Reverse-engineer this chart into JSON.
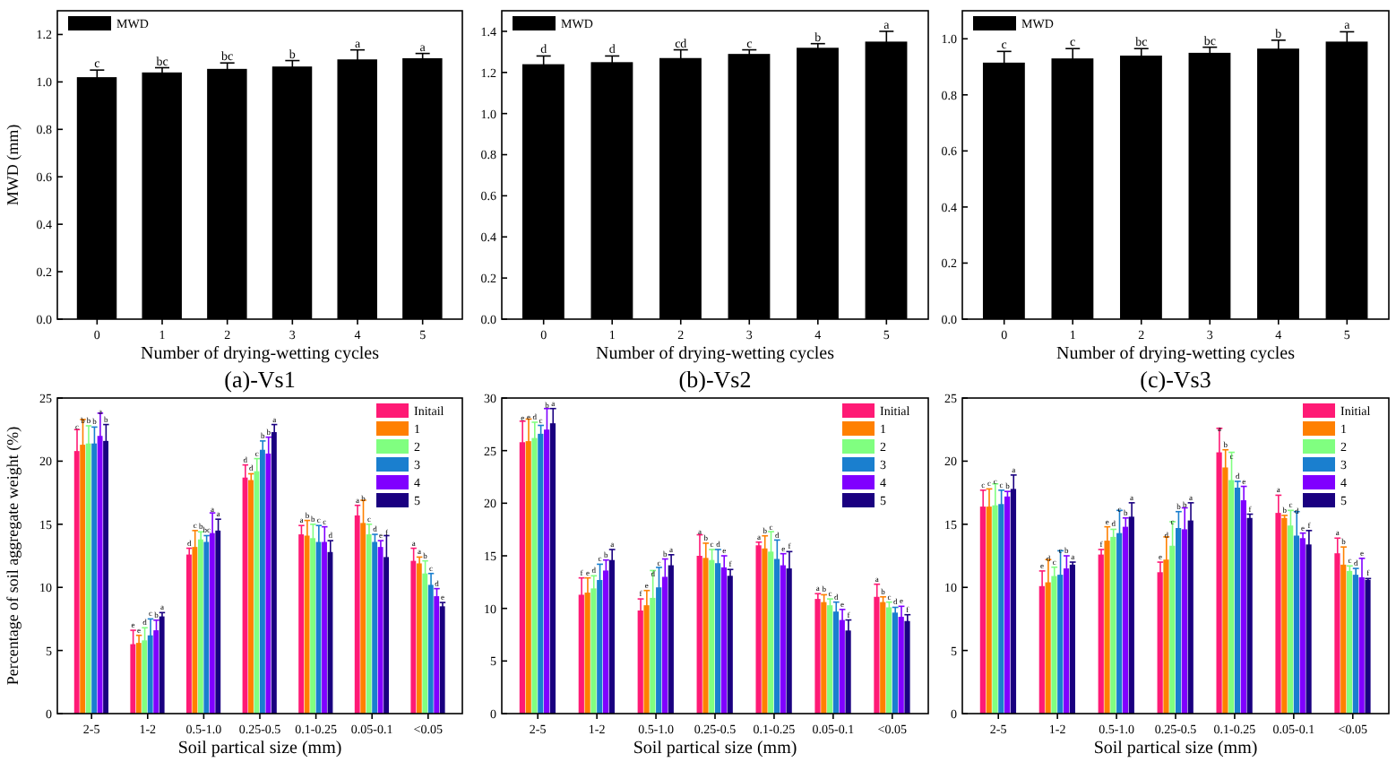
{
  "chart_data": [
    {
      "type": "bar",
      "title": "(a)-Vs1",
      "xlabel": "Number of drying-wetting cycles",
      "ylabel": "MWD (mm)",
      "categories": [
        "0",
        "1",
        "2",
        "3",
        "4",
        "5"
      ],
      "ylim": [
        0,
        1.3
      ],
      "yticks": [
        {
          "value": 0,
          "label": "0.0"
        },
        {
          "value": 0.2,
          "label": "0.2"
        },
        {
          "value": 0.4,
          "label": "0.4"
        },
        {
          "value": 0.6,
          "label": "0.6"
        },
        {
          "value": 0.8,
          "label": "0.8"
        },
        {
          "value": 1,
          "label": "1.0"
        },
        {
          "value": 1.2,
          "label": "1.2"
        }
      ],
      "legend": "top left",
      "grid": false,
      "series": [
        {
          "name": "MWD",
          "color": "#000000",
          "values": [
            1.02,
            1.04,
            1.055,
            1.065,
            1.095,
            1.1
          ],
          "errors": [
            0.03,
            0.02,
            0.025,
            0.025,
            0.04,
            0.02
          ],
          "value_labels": [
            "c",
            "bc",
            "bc",
            "b",
            "a",
            "a"
          ]
        }
      ]
    },
    {
      "type": "bar",
      "title": "(b)-Vs2",
      "xlabel": "Number of drying-wetting cycles",
      "categories": [
        "0",
        "1",
        "2",
        "3",
        "4",
        "5"
      ],
      "ylim": [
        0,
        1.5
      ],
      "yticks": [
        {
          "value": 0,
          "label": "0.0"
        },
        {
          "value": 0.2,
          "label": "0.2"
        },
        {
          "value": 0.4,
          "label": "0.4"
        },
        {
          "value": 0.6,
          "label": "0.6"
        },
        {
          "value": 0.8,
          "label": "0.8"
        },
        {
          "value": 1,
          "label": "1.0"
        },
        {
          "value": 1.2,
          "label": "1.2"
        },
        {
          "value": 1.4,
          "label": "1.4"
        }
      ],
      "legend": "top left",
      "grid": false,
      "series": [
        {
          "name": "MWD",
          "color": "#000000",
          "values": [
            1.24,
            1.25,
            1.27,
            1.29,
            1.32,
            1.35
          ],
          "errors": [
            0.04,
            0.03,
            0.04,
            0.02,
            0.02,
            0.05
          ],
          "value_labels": [
            "d",
            "d",
            "cd",
            "c",
            "b",
            "a"
          ]
        }
      ]
    },
    {
      "type": "bar",
      "title": "(c)-Vs3",
      "xlabel": "Number of drying-wetting cycles",
      "categories": [
        "0",
        "1",
        "2",
        "3",
        "4",
        "5"
      ],
      "ylim": [
        0,
        1.1
      ],
      "yticks": [
        {
          "value": 0,
          "label": "0.0"
        },
        {
          "value": 0.2,
          "label": "0.2"
        },
        {
          "value": 0.4,
          "label": "0.4"
        },
        {
          "value": 0.6,
          "label": "0.6"
        },
        {
          "value": 0.8,
          "label": "0.8"
        },
        {
          "value": 1,
          "label": "1.0"
        }
      ],
      "legend": "top left",
      "grid": false,
      "series": [
        {
          "name": "MWD",
          "color": "#000000",
          "values": [
            0.915,
            0.93,
            0.94,
            0.95,
            0.965,
            0.99
          ],
          "errors": [
            0.04,
            0.035,
            0.025,
            0.02,
            0.03,
            0.035
          ],
          "value_labels": [
            "c",
            "c",
            "bc",
            "bc",
            "b",
            "a"
          ]
        }
      ]
    },
    {
      "type": "bar",
      "xlabel": "Soil partical size (mm)",
      "ylabel": "Percentage of soil aggregate weight (%)",
      "categories": [
        "2-5",
        "1-2",
        "0.5-1.0",
        "0.25-0.5",
        "0.1-0.25",
        "0.05-0.1",
        "<0.05"
      ],
      "ylim": [
        0,
        25
      ],
      "yticks": [
        0,
        5,
        10,
        15,
        20,
        25
      ],
      "legend": "top right",
      "grid": false,
      "series": [
        {
          "name": "Initail",
          "color": "#ff1a75",
          "values": [
            20.8,
            5.5,
            12.6,
            18.7,
            14.2,
            15.7,
            12.1
          ],
          "errors": [
            1.7,
            1.1,
            0.5,
            1.0,
            0.7,
            0.8,
            1.0
          ],
          "value_labels": [
            "c",
            "e",
            "d",
            "d",
            "a",
            "a",
            "a"
          ]
        },
        {
          "name": "1",
          "color": "#ff8000",
          "values": [
            21.3,
            5.6,
            13.2,
            18.5,
            14.1,
            15.1,
            11.9
          ],
          "errors": [
            2.0,
            0.6,
            1.3,
            0.5,
            1.2,
            1.8,
            0.5
          ],
          "value_labels": [
            "b",
            "e",
            "c",
            "d",
            "b",
            "b",
            "a"
          ]
        },
        {
          "name": "2",
          "color": "#80ff80",
          "values": [
            21.4,
            5.8,
            13.8,
            19.2,
            13.9,
            14.2,
            11.1
          ],
          "errors": [
            1.4,
            1.0,
            0.6,
            1.0,
            1.1,
            0.8,
            1.0
          ],
          "value_labels": [
            "b",
            "d",
            "b",
            "c",
            "b",
            "c",
            "b"
          ]
        },
        {
          "name": "3",
          "color": "#1a7fcf",
          "values": [
            21.4,
            6.2,
            13.6,
            20.9,
            13.6,
            13.6,
            10.2
          ],
          "errors": [
            1.3,
            1.3,
            0.5,
            0.7,
            1.3,
            0.6,
            0.9
          ],
          "value_labels": [
            "b",
            "c",
            "bc",
            "b",
            "c",
            "d",
            "c"
          ]
        },
        {
          "name": "4",
          "color": "#8000ff",
          "values": [
            22.0,
            6.6,
            14.3,
            20.6,
            13.6,
            13.2,
            9.3
          ],
          "errors": [
            1.8,
            0.8,
            1.6,
            1.3,
            1.2,
            0.5,
            0.6
          ],
          "value_labels": [
            "a",
            "b",
            "a",
            "b",
            "c",
            "e",
            "d"
          ]
        },
        {
          "name": "5",
          "color": "#1a0080",
          "values": [
            21.6,
            7.7,
            14.5,
            22.3,
            12.8,
            12.4,
            8.5
          ],
          "errors": [
            1.3,
            0.3,
            0.9,
            0.6,
            0.9,
            1.7,
            0.3
          ],
          "value_labels": [
            "b",
            "a",
            "a",
            "a",
            "d",
            "f",
            "e"
          ]
        }
      ]
    },
    {
      "type": "bar",
      "xlabel": "Soil partical size (mm)",
      "categories": [
        "2-5",
        "1-2",
        "0.5-1.0",
        "0.25-0.5",
        "0.1-0.25",
        "0.05-0.1",
        "<0.05"
      ],
      "ylim": [
        0,
        30
      ],
      "yticks": [
        0,
        5,
        10,
        15,
        20,
        25,
        30
      ],
      "legend": "top right",
      "grid": false,
      "series": [
        {
          "name": "Initial",
          "color": "#ff1a75",
          "values": [
            25.8,
            11.3,
            9.8,
            15.0,
            16.0,
            10.9,
            11.1
          ],
          "errors": [
            2.0,
            1.6,
            1.1,
            2.0,
            0.3,
            0.5,
            1.2
          ],
          "value_labels": [
            "e",
            "f",
            "f",
            "a",
            "a",
            "a",
            "a"
          ]
        },
        {
          "name": "1",
          "color": "#ff8000",
          "values": [
            25.9,
            11.5,
            10.3,
            14.8,
            15.7,
            10.6,
            10.6
          ],
          "errors": [
            2.1,
            1.4,
            1.4,
            1.4,
            1.2,
            0.7,
            0.5
          ],
          "value_labels": [
            "e",
            "e",
            "e",
            "b",
            "b",
            "b",
            "b"
          ]
        },
        {
          "name": "2",
          "color": "#80ff80",
          "values": [
            26.2,
            11.9,
            11.0,
            14.6,
            15.4,
            10.3,
            10.1
          ],
          "errors": [
            1.5,
            1.2,
            2.6,
            1.0,
            1.9,
            0.6,
            0.5
          ],
          "value_labels": [
            "d",
            "d",
            "d",
            "c",
            "c",
            "c",
            "c"
          ]
        },
        {
          "name": "3",
          "color": "#1a7fcf",
          "values": [
            26.6,
            12.7,
            12.0,
            14.3,
            14.7,
            9.7,
            9.6
          ],
          "errors": [
            0.8,
            1.5,
            1.9,
            1.3,
            1.8,
            0.9,
            0.5
          ],
          "value_labels": [
            "c",
            "c",
            "c",
            "d",
            "d",
            "d",
            "d"
          ]
        },
        {
          "name": "4",
          "color": "#8000ff",
          "values": [
            27.0,
            13.6,
            13.0,
            13.9,
            14.1,
            8.9,
            9.2
          ],
          "errors": [
            2.0,
            1.0,
            1.7,
            1.1,
            1.1,
            1.0,
            1.0
          ],
          "value_labels": [
            "b",
            "b",
            "b",
            "e",
            "e",
            "e",
            "e"
          ]
        },
        {
          "name": "5",
          "color": "#1a0080",
          "values": [
            27.6,
            14.6,
            14.1,
            13.1,
            13.8,
            7.9,
            8.8
          ],
          "errors": [
            1.4,
            1.0,
            1.0,
            0.6,
            1.6,
            1.0,
            0.6
          ],
          "value_labels": [
            "a",
            "a",
            "a",
            "f",
            "f",
            "f",
            "f"
          ]
        }
      ]
    },
    {
      "type": "bar",
      "xlabel": "Soil partical size (mm)",
      "categories": [
        "2-5",
        "1-2",
        "0.5-1.0",
        "0.25-0.5",
        "0.1-0.25",
        "0.05-0.1",
        "<0.05"
      ],
      "ylim": [
        0,
        25
      ],
      "yticks": [
        0,
        5,
        10,
        15,
        20,
        25
      ],
      "legend": "top right",
      "grid": false,
      "series": [
        {
          "name": "Initial",
          "color": "#ff1a75",
          "values": [
            16.4,
            10.1,
            12.6,
            11.2,
            20.7,
            15.9,
            12.7
          ],
          "errors": [
            1.3,
            1.2,
            0.4,
            0.8,
            1.9,
            1.4,
            1.2
          ],
          "value_labels": [
            "c",
            "e",
            "f",
            "e",
            "a",
            "a",
            "a"
          ]
        },
        {
          "name": "1",
          "color": "#ff8000",
          "values": [
            16.4,
            10.4,
            13.7,
            12.2,
            19.5,
            15.5,
            11.8
          ],
          "errors": [
            1.4,
            1.8,
            1.1,
            1.8,
            1.4,
            0.2,
            1.4
          ],
          "value_labels": [
            "c",
            "d",
            "e",
            "d",
            "b",
            "b",
            "b"
          ]
        },
        {
          "name": "2",
          "color": "#80ff80",
          "values": [
            16.5,
            10.9,
            14.0,
            13.3,
            18.5,
            14.9,
            11.3
          ],
          "errors": [
            1.7,
            0.7,
            0.6,
            1.9,
            2.2,
            1.2,
            0.4
          ],
          "value_labels": [
            "c",
            "c",
            "d",
            "c",
            "c",
            "c",
            "c"
          ]
        },
        {
          "name": "3",
          "color": "#1a7fcf",
          "values": [
            16.6,
            11.0,
            14.3,
            14.7,
            17.9,
            14.1,
            11.0
          ],
          "errors": [
            1.1,
            1.9,
            1.8,
            1.3,
            0.5,
            1.9,
            0.5
          ],
          "value_labels": [
            "c",
            "c",
            "c",
            "b",
            "d",
            "d",
            "d"
          ]
        },
        {
          "name": "4",
          "color": "#8000ff",
          "values": [
            17.2,
            11.5,
            14.8,
            14.6,
            16.9,
            13.9,
            10.8
          ],
          "errors": [
            0.4,
            1.0,
            0.7,
            1.7,
            1.1,
            0.4,
            1.5
          ],
          "value_labels": [
            "b",
            "b",
            "b",
            "b",
            "e",
            "e",
            "e"
          ]
        },
        {
          "name": "5",
          "color": "#1a0080",
          "values": [
            17.8,
            11.8,
            15.6,
            15.3,
            15.5,
            13.4,
            10.6
          ],
          "errors": [
            1.1,
            0.2,
            1.1,
            1.4,
            0.3,
            1.1,
            0.1
          ],
          "value_labels": [
            "a",
            "a",
            "a",
            "a",
            "f",
            "f",
            "f"
          ]
        }
      ]
    }
  ]
}
